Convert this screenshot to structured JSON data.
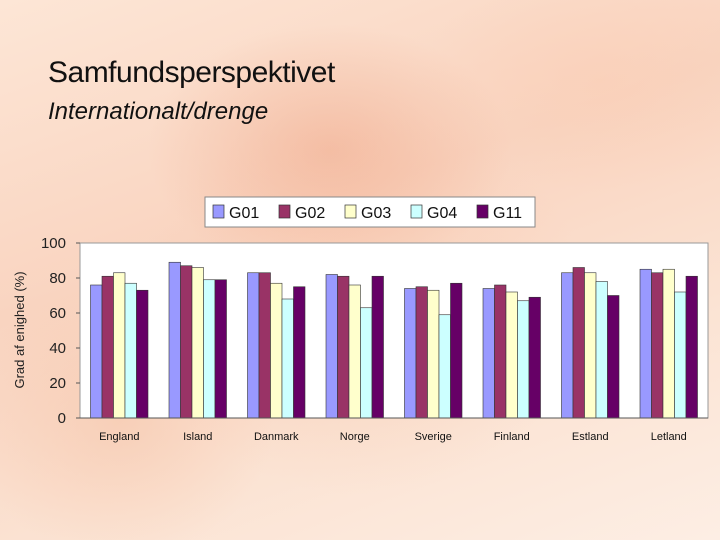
{
  "header": {
    "title": "Samfundsperspektivet",
    "subtitle": "Internationalt/drenge"
  },
  "colors": {
    "G01": "#9999ff",
    "G02": "#993366",
    "G03": "#ffffcc",
    "G04": "#ccffff",
    "G11": "#660066"
  },
  "chart_data": {
    "type": "bar",
    "ylabel": "Grad af enighed (%)",
    "ylim": [
      0,
      100
    ],
    "yticks": [
      "0",
      "20",
      "40",
      "60",
      "80",
      "100"
    ],
    "grid": false,
    "legend_position": "top",
    "categories": [
      "England",
      "Island",
      "Danmark",
      "Norge",
      "Sverige",
      "Finland",
      "Estland",
      "Letland"
    ],
    "series": [
      {
        "name": "G01",
        "values": [
          76,
          89,
          83,
          82,
          74,
          74,
          83,
          85
        ]
      },
      {
        "name": "G02",
        "values": [
          81,
          87,
          83,
          81,
          75,
          76,
          86,
          83
        ]
      },
      {
        "name": "G03",
        "values": [
          83,
          86,
          77,
          76,
          73,
          72,
          83,
          85
        ]
      },
      {
        "name": "G04",
        "values": [
          77,
          79,
          68,
          63,
          59,
          67,
          78,
          72
        ]
      },
      {
        "name": "G11",
        "values": [
          73,
          79,
          75,
          81,
          77,
          69,
          70,
          81
        ]
      }
    ]
  }
}
